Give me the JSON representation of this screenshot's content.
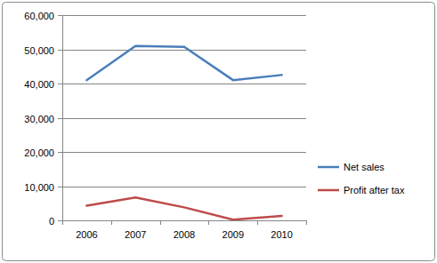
{
  "chart_data": {
    "type": "line",
    "categories": [
      "2006",
      "2007",
      "2008",
      "2009",
      "2010"
    ],
    "series": [
      {
        "name": "Net sales",
        "color": "#4a7ebb",
        "values": [
          41000,
          51000,
          50700,
          41000,
          42500
        ]
      },
      {
        "name": "Profit after tax",
        "color": "#be4b48",
        "values": [
          4300,
          6700,
          3800,
          200,
          1300
        ]
      }
    ],
    "ylim": [
      0,
      60000
    ],
    "yticks": [
      0,
      {
        "value": 10000,
        "label": "10,000"
      },
      {
        "value": 20000,
        "label": "20,000"
      },
      {
        "value": 30000,
        "label": "30,000"
      },
      {
        "value": 40000,
        "label": "40,000"
      },
      {
        "value": 50000,
        "label": "50,000"
      },
      {
        "value": 60000,
        "label": "60,000"
      }
    ],
    "grid": true,
    "legend": "right"
  }
}
